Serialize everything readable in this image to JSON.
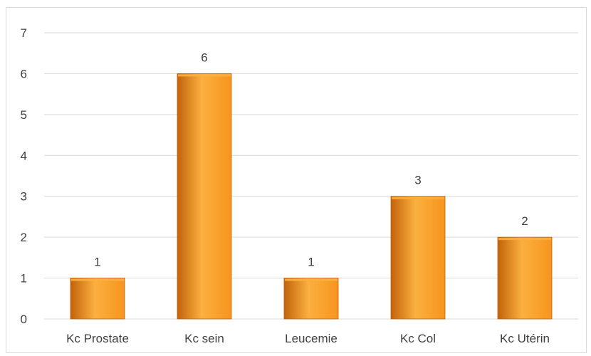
{
  "chart_data": {
    "type": "bar",
    "categories": [
      "Kc Prostate",
      "Kc sein",
      "Leucemie",
      "Kc Col",
      "Kc Utérin"
    ],
    "values": [
      1,
      6,
      1,
      3,
      2
    ],
    "data_labels": [
      "1",
      "6",
      "1",
      "3",
      "2"
    ],
    "ylim": [
      0,
      7
    ],
    "yticks": [
      0,
      1,
      2,
      3,
      4,
      5,
      6,
      7
    ],
    "grid": true,
    "legend": "none",
    "bar_color": "#f7941d",
    "bar_color_light": "#fbb040",
    "bar_color_dark": "#c2620a",
    "gridline_color": "#d9d9d9",
    "text_color": "#404040"
  }
}
